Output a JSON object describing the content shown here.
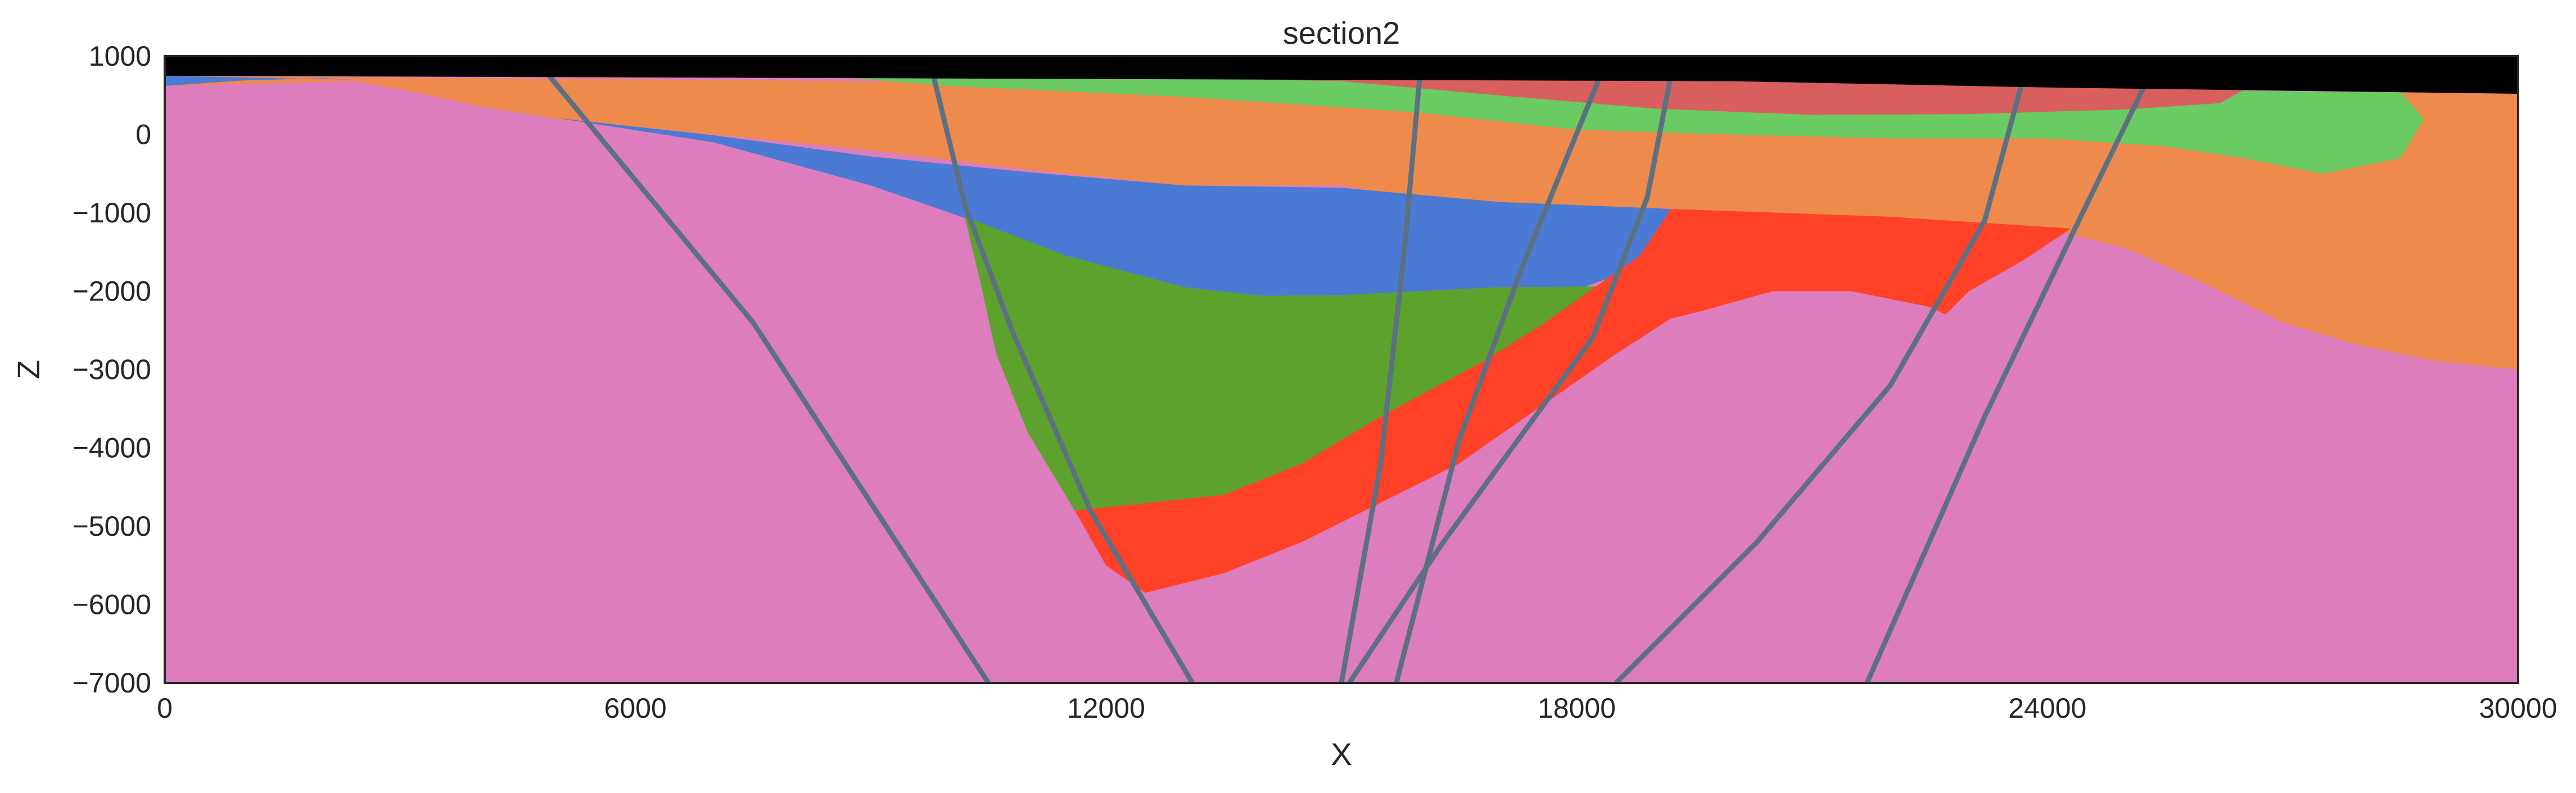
{
  "chart_data": {
    "type": "area",
    "title": "section2",
    "xlabel": "X",
    "ylabel": "Z",
    "xlim": [
      0,
      30000
    ],
    "ylim": [
      -7000,
      1000
    ],
    "x_ticks": [
      "0",
      "6000",
      "12000",
      "18000",
      "24000",
      "30000"
    ],
    "y_ticks": [
      "1000",
      "0",
      "−1000",
      "−2000",
      "−3000",
      "−4000",
      "−5000",
      "−6000",
      "−7000"
    ],
    "grid": false,
    "legend": "none",
    "background_color": "#dd7dbd",
    "layers": [
      {
        "color": "#ef8a4d",
        "polygon": [
          [
            0,
            750
          ],
          [
            30000,
            520
          ],
          [
            30000,
            -3000
          ],
          [
            29000,
            -2900
          ],
          [
            28000,
            -2700
          ],
          [
            27000,
            -2400
          ],
          [
            26000,
            -1900
          ],
          [
            25000,
            -1450
          ],
          [
            24000,
            -1200
          ],
          [
            22000,
            -1100
          ],
          [
            20000,
            -1000
          ],
          [
            19000,
            -950
          ],
          [
            17000,
            -1000
          ],
          [
            15000,
            -650
          ],
          [
            13000,
            -650
          ],
          [
            11000,
            -450
          ],
          [
            9000,
            -200
          ],
          [
            7000,
            0
          ],
          [
            5000,
            200
          ],
          [
            4000,
            360
          ],
          [
            3000,
            580
          ],
          [
            2400,
            680
          ],
          [
            0,
            620
          ]
        ]
      },
      {
        "color": "#4a7ad4",
        "polygon": [
          [
            0,
            750
          ],
          [
            2400,
            700
          ],
          [
            2000,
            720
          ],
          [
            1000,
            690
          ],
          [
            0,
            620
          ]
        ]
      },
      {
        "color": "#4a7ad4",
        "polygon": [
          [
            5000,
            210
          ],
          [
            7000,
            -10
          ],
          [
            9000,
            -280
          ],
          [
            11000,
            -480
          ],
          [
            13000,
            -650
          ],
          [
            15000,
            -680
          ],
          [
            17000,
            -860
          ],
          [
            18000,
            -900
          ],
          [
            19200,
            -950
          ],
          [
            18800,
            -1550
          ],
          [
            18500,
            -1800
          ],
          [
            18000,
            -1980
          ],
          [
            17000,
            -1950
          ],
          [
            15000,
            -2050
          ],
          [
            14000,
            -2060
          ],
          [
            13000,
            -1950
          ],
          [
            11500,
            -1550
          ],
          [
            10300,
            -1100
          ],
          [
            9000,
            -650
          ],
          [
            7000,
            -100
          ]
        ]
      },
      {
        "color": "#6acb63",
        "polygon": [
          [
            8500,
            750
          ],
          [
            20000,
            650
          ],
          [
            24000,
            580
          ],
          [
            28500,
            540
          ],
          [
            28800,
            200
          ],
          [
            28500,
            -300
          ],
          [
            27500,
            -500
          ],
          [
            26500,
            -300
          ],
          [
            25500,
            -150
          ],
          [
            24000,
            -50
          ],
          [
            22000,
            -50
          ],
          [
            20000,
            0
          ],
          [
            18000,
            60
          ],
          [
            16000,
            280
          ],
          [
            13000,
            480
          ],
          [
            10000,
            620
          ],
          [
            8500,
            740
          ]
        ]
      },
      {
        "color": "#d95f5f",
        "polygon": [
          [
            11500,
            750
          ],
          [
            20000,
            680
          ],
          [
            24000,
            600
          ],
          [
            26500,
            570
          ],
          [
            26200,
            400
          ],
          [
            25000,
            320
          ],
          [
            23000,
            260
          ],
          [
            21000,
            250
          ],
          [
            19000,
            330
          ],
          [
            17000,
            500
          ],
          [
            15000,
            680
          ],
          [
            13000,
            720
          ]
        ]
      },
      {
        "color": "#5da22c",
        "polygon": [
          [
            10200,
            -1050
          ],
          [
            11500,
            -1550
          ],
          [
            13000,
            -1950
          ],
          [
            14000,
            -2060
          ],
          [
            15000,
            -2050
          ],
          [
            17000,
            -1950
          ],
          [
            18300,
            -1940
          ],
          [
            17600,
            -2400
          ],
          [
            16800,
            -2900
          ],
          [
            15500,
            -3600
          ],
          [
            14500,
            -4200
          ],
          [
            13500,
            -4600
          ],
          [
            11600,
            -4800
          ],
          [
            11000,
            -3800
          ],
          [
            10600,
            -2800
          ],
          [
            10400,
            -1900
          ]
        ]
      },
      {
        "color": "#ff4128",
        "polygon": [
          [
            19200,
            -950
          ],
          [
            22000,
            -1050
          ],
          [
            24300,
            -1200
          ],
          [
            23700,
            -1600
          ],
          [
            23000,
            -2000
          ],
          [
            22700,
            -2300
          ],
          [
            22500,
            -2200
          ],
          [
            21500,
            -2000
          ],
          [
            20500,
            -2000
          ],
          [
            19600,
            -2250
          ],
          [
            19200,
            -2350
          ],
          [
            18500,
            -2800
          ],
          [
            17500,
            -3500
          ],
          [
            16500,
            -4200
          ],
          [
            15500,
            -4700
          ],
          [
            14500,
            -5200
          ],
          [
            13500,
            -5600
          ],
          [
            12500,
            -5850
          ],
          [
            12000,
            -5500
          ],
          [
            11600,
            -4800
          ],
          [
            13500,
            -4600
          ],
          [
            14500,
            -4200
          ],
          [
            15500,
            -3600
          ],
          [
            16800,
            -2900
          ],
          [
            17600,
            -2400
          ],
          [
            18300,
            -1900
          ],
          [
            18800,
            -1550
          ]
        ]
      }
    ],
    "faults": [
      {
        "color": "#5d7082",
        "points": [
          [
            4900,
            750
          ],
          [
            7500,
            -2400
          ],
          [
            10500,
            -7000
          ]
        ]
      },
      {
        "color": "#5d7082",
        "points": [
          [
            9800,
            750
          ],
          [
            10200,
            -900
          ],
          [
            10800,
            -2500
          ],
          [
            11800,
            -4800
          ],
          [
            13100,
            -7000
          ]
        ]
      },
      {
        "color": "#5d7082",
        "points": [
          [
            16000,
            750
          ],
          [
            15800,
            -1500
          ],
          [
            15500,
            -4200
          ],
          [
            15000,
            -7000
          ]
        ]
      },
      {
        "color": "#5d7082",
        "points": [
          [
            18300,
            750
          ],
          [
            17300,
            -1700
          ],
          [
            16500,
            -3900
          ],
          [
            15700,
            -7000
          ]
        ]
      },
      {
        "color": "#5d7082",
        "points": [
          [
            19200,
            750
          ],
          [
            18900,
            -800
          ],
          [
            18200,
            -2600
          ],
          [
            16300,
            -5200
          ],
          [
            15100,
            -7000
          ]
        ]
      },
      {
        "color": "#5d7082",
        "points": [
          [
            23700,
            750
          ],
          [
            23200,
            -1100
          ],
          [
            22000,
            -3200
          ],
          [
            20300,
            -5200
          ],
          [
            18500,
            -7000
          ]
        ]
      },
      {
        "color": "#5d7082",
        "points": [
          [
            25300,
            750
          ],
          [
            24400,
            -1100
          ],
          [
            23200,
            -3600
          ],
          [
            21700,
            -7000
          ]
        ]
      }
    ],
    "topography_fill": "#000000",
    "topography": [
      [
        0,
        1000
      ],
      [
        30000,
        1000
      ],
      [
        30000,
        520
      ],
      [
        24000,
        600
      ],
      [
        20000,
        680
      ],
      [
        0,
        750
      ]
    ]
  }
}
